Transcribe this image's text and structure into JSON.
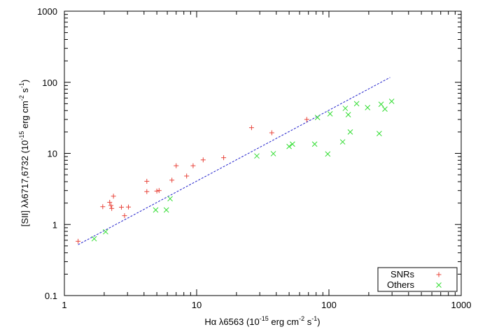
{
  "chart_data": {
    "type": "scatter",
    "x_scale": "log",
    "y_scale": "log",
    "xlim": [
      1,
      1000
    ],
    "ylim": [
      0.1,
      1000
    ],
    "xlabel": {
      "main": "Hα λ6563 (10",
      "exp1": "-15",
      "mid": " erg cm",
      "exp2": "-2",
      "end": " s",
      "exp3": "-1",
      "close": ")"
    },
    "ylabel": {
      "main": "[SII] λλ6717,6732 (10",
      "exp1": "-15",
      "mid": " erg cm",
      "exp2": "-2",
      "end": " s",
      "exp3": "-1",
      "close": ")"
    },
    "x_ticks": [
      {
        "value": 1,
        "label": "1"
      },
      {
        "value": 10,
        "label": "10"
      },
      {
        "value": 100,
        "label": "100"
      },
      {
        "value": 1000,
        "label": "1000"
      }
    ],
    "y_ticks": [
      {
        "value": 0.1,
        "label": "0.1"
      },
      {
        "value": 1,
        "label": "1"
      },
      {
        "value": 10,
        "label": "10"
      },
      {
        "value": 100,
        "label": "100"
      },
      {
        "value": 1000,
        "label": "1000"
      }
    ],
    "legend_position": "bottom-right",
    "series": [
      {
        "name": "SNRs",
        "marker": "plus",
        "color": "#e8443a",
        "points": [
          [
            1.27,
            0.58
          ],
          [
            1.95,
            1.78
          ],
          [
            2.2,
            2.05
          ],
          [
            2.25,
            1.85
          ],
          [
            2.28,
            1.68
          ],
          [
            2.35,
            2.5
          ],
          [
            2.7,
            1.75
          ],
          [
            2.85,
            1.33
          ],
          [
            3.05,
            1.76
          ],
          [
            4.2,
            4.05
          ],
          [
            4.2,
            2.9
          ],
          [
            5.0,
            2.95
          ],
          [
            5.2,
            3.0
          ],
          [
            6.5,
            4.2
          ],
          [
            7.0,
            6.7
          ],
          [
            8.4,
            4.8
          ],
          [
            9.4,
            6.7
          ],
          [
            11.2,
            8.1
          ],
          [
            16.0,
            8.7
          ],
          [
            26.0,
            23.0
          ],
          [
            37.0,
            19.5
          ],
          [
            68.0,
            30.0
          ]
        ]
      },
      {
        "name": "Others",
        "marker": "x",
        "color": "#33dd33",
        "points": [
          [
            1.68,
            0.63
          ],
          [
            2.05,
            0.79
          ],
          [
            4.9,
            1.6
          ],
          [
            5.9,
            1.6
          ],
          [
            6.3,
            2.3
          ],
          [
            28.5,
            9.2
          ],
          [
            38.0,
            9.9
          ],
          [
            50.0,
            12.5
          ],
          [
            53.0,
            13.5
          ],
          [
            78.0,
            13.5
          ],
          [
            82.0,
            32.0
          ],
          [
            98.0,
            9.8
          ],
          [
            102.0,
            36.0
          ],
          [
            127.0,
            14.5
          ],
          [
            133.0,
            43.0
          ],
          [
            140.0,
            35.0
          ],
          [
            145.0,
            20.0
          ],
          [
            162.0,
            50.0
          ],
          [
            196.0,
            44.0
          ],
          [
            240.0,
            19.0
          ],
          [
            248.0,
            49.0
          ],
          [
            265.0,
            42.0
          ],
          [
            298.0,
            54.0
          ]
        ]
      }
    ],
    "fit_line": {
      "color": "#2222cc",
      "style": "dashed",
      "points": [
        [
          1.27,
          0.52
        ],
        [
          290.0,
          117.0
        ]
      ]
    }
  }
}
